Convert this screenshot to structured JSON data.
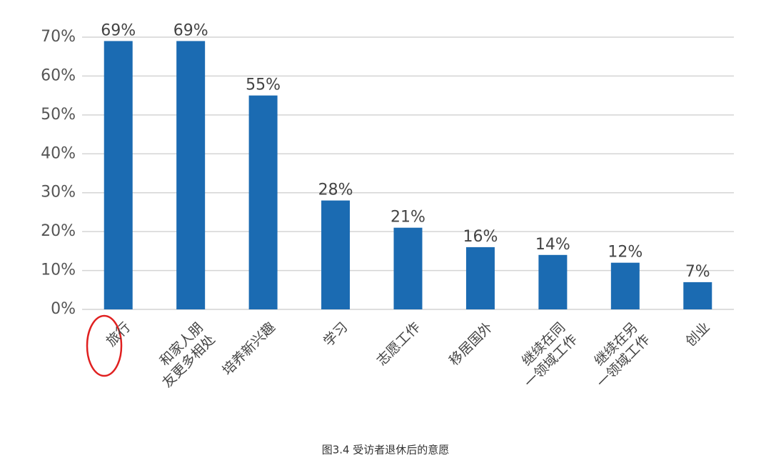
{
  "chart_data": {
    "type": "bar",
    "caption": "图3.4 受访者退休后的意愿",
    "categories": [
      "旅行",
      "和家人朋\n友更多相处",
      "培养新兴趣",
      "学习",
      "志愿工作",
      "移居国外",
      "继续在同\n一领域工作",
      "继续在另\n一领域工作",
      "创业"
    ],
    "values": [
      69,
      69,
      55,
      28,
      21,
      16,
      14,
      12,
      7
    ],
    "value_labels": [
      "69%",
      "69%",
      "55%",
      "28%",
      "21%",
      "16%",
      "14%",
      "12%",
      "7%"
    ],
    "color": "#1b6bb2",
    "ylim": [
      0,
      70
    ],
    "yticks": [
      {
        "value": 0,
        "label": "0%"
      },
      {
        "value": 10,
        "label": "10%"
      },
      {
        "value": 20,
        "label": "20%"
      },
      {
        "value": 30,
        "label": "30%"
      },
      {
        "value": 40,
        "label": "40%"
      },
      {
        "value": 50,
        "label": "50%"
      },
      {
        "value": 60,
        "label": "60%"
      },
      {
        "value": 70,
        "label": "70%"
      }
    ],
    "grid": true
  }
}
